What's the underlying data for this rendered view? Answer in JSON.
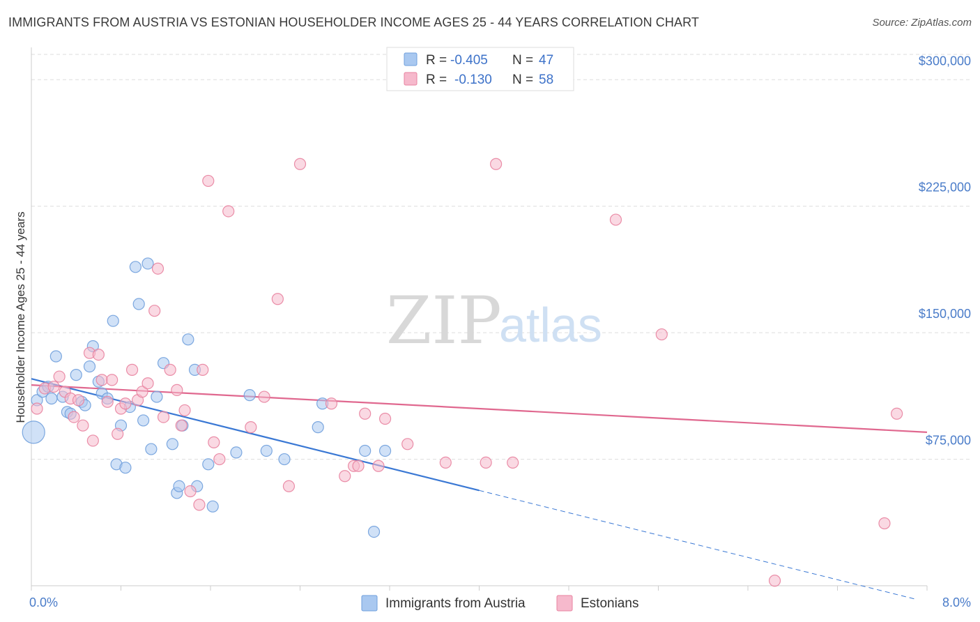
{
  "header": {
    "title": "IMMIGRANTS FROM AUSTRIA VS ESTONIAN HOUSEHOLDER INCOME AGES 25 - 44 YEARS CORRELATION CHART",
    "source": "Source: ZipAtlas.com"
  },
  "watermark": {
    "zip": "ZIP",
    "atlas": "atlas"
  },
  "legend": {
    "rows": [
      {
        "r_label": "R =",
        "r_value": "-0.405",
        "n_label": "N =",
        "n_value": "47",
        "color": "#a9c8f0",
        "stroke": "#6f9fdc"
      },
      {
        "r_label": "R =",
        "r_value": "-0.130",
        "n_label": "N =",
        "n_value": "58",
        "color": "#f6b9cc",
        "stroke": "#e8829f"
      }
    ]
  },
  "colors": {
    "blue_fill": "#a9c8f0",
    "blue_stroke": "#6f9fdc",
    "blue_line": "#3a78d4",
    "pink_fill": "#f6b9cc",
    "pink_stroke": "#e8829f",
    "pink_line": "#e0688f",
    "grid": "#dddddd",
    "axis_text": "#4a7cc9"
  },
  "chart_data": {
    "type": "scatter",
    "title": "IMMIGRANTS FROM AUSTRIA VS ESTONIAN HOUSEHOLDER INCOME AGES 25 - 44 YEARS CORRELATION CHART",
    "xlabel": "",
    "ylabel": "Householder Income Ages 25 - 44 years",
    "xlim": [
      0,
      8
    ],
    "ylim": [
      0,
      315000
    ],
    "x_tick_labels": [
      "0.0%",
      "8.0%"
    ],
    "y_ticks": [
      75000,
      150000,
      225000,
      300000
    ],
    "y_tick_labels": [
      "$75,000",
      "$150,000",
      "$225,000",
      "$300,000"
    ],
    "grid": true,
    "legend_position": "top-center",
    "series": [
      {
        "name": "Immigrants from Austria",
        "r": -0.405,
        "n": 47,
        "trend": {
          "x0": 0.0,
          "y0": 122700,
          "x1": 4.0,
          "y1": 56500,
          "dash_to_x": 7.9,
          "dash_to_y": -8000
        },
        "points": [
          [
            0.02,
            91000
          ],
          [
            0.05,
            110000
          ],
          [
            0.1,
            115000
          ],
          [
            0.15,
            118000
          ],
          [
            0.18,
            111000
          ],
          [
            0.22,
            136000
          ],
          [
            0.28,
            112000
          ],
          [
            0.32,
            103000
          ],
          [
            0.35,
            102000
          ],
          [
            0.4,
            125000
          ],
          [
            0.45,
            109000
          ],
          [
            0.48,
            107000
          ],
          [
            0.52,
            130000
          ],
          [
            0.55,
            142000
          ],
          [
            0.6,
            121000
          ],
          [
            0.63,
            114000
          ],
          [
            0.68,
            111000
          ],
          [
            0.73,
            157000
          ],
          [
            0.76,
            72000
          ],
          [
            0.8,
            95000
          ],
          [
            0.84,
            70000
          ],
          [
            0.88,
            106000
          ],
          [
            0.93,
            189000
          ],
          [
            0.96,
            167000
          ],
          [
            1.0,
            98000
          ],
          [
            1.04,
            191000
          ],
          [
            1.07,
            81000
          ],
          [
            1.12,
            112000
          ],
          [
            1.18,
            132000
          ],
          [
            1.26,
            84000
          ],
          [
            1.3,
            55000
          ],
          [
            1.32,
            59000
          ],
          [
            1.35,
            95000
          ],
          [
            1.4,
            146000
          ],
          [
            1.46,
            128000
          ],
          [
            1.48,
            59000
          ],
          [
            1.58,
            72000
          ],
          [
            1.62,
            47000
          ],
          [
            1.83,
            79000
          ],
          [
            1.95,
            113000
          ],
          [
            2.1,
            80000
          ],
          [
            2.26,
            75000
          ],
          [
            2.56,
            94000
          ],
          [
            2.6,
            108000
          ],
          [
            2.98,
            80000
          ],
          [
            3.06,
            32000
          ],
          [
            3.16,
            80000
          ]
        ]
      },
      {
        "name": "Estonians",
        "r": -0.13,
        "n": 58,
        "trend": {
          "x0": 0.0,
          "y0": 119000,
          "x1": 8.0,
          "y1": 91000
        },
        "points": [
          [
            0.05,
            105000
          ],
          [
            0.12,
            117000
          ],
          [
            0.2,
            118000
          ],
          [
            0.25,
            124000
          ],
          [
            0.3,
            115000
          ],
          [
            0.35,
            111000
          ],
          [
            0.38,
            100000
          ],
          [
            0.42,
            110000
          ],
          [
            0.46,
            95000
          ],
          [
            0.52,
            138000
          ],
          [
            0.55,
            86000
          ],
          [
            0.6,
            137000
          ],
          [
            0.63,
            122000
          ],
          [
            0.68,
            109000
          ],
          [
            0.72,
            122000
          ],
          [
            0.77,
            90000
          ],
          [
            0.8,
            105000
          ],
          [
            0.84,
            108000
          ],
          [
            0.9,
            128000
          ],
          [
            0.95,
            110000
          ],
          [
            0.99,
            115000
          ],
          [
            1.04,
            120000
          ],
          [
            1.1,
            163000
          ],
          [
            1.13,
            188000
          ],
          [
            1.18,
            100000
          ],
          [
            1.24,
            128000
          ],
          [
            1.3,
            116000
          ],
          [
            1.34,
            95000
          ],
          [
            1.37,
            104000
          ],
          [
            1.42,
            56000
          ],
          [
            1.5,
            48000
          ],
          [
            1.53,
            128000
          ],
          [
            1.58,
            240000
          ],
          [
            1.63,
            85000
          ],
          [
            1.68,
            75000
          ],
          [
            1.76,
            222000
          ],
          [
            1.96,
            94000
          ],
          [
            2.08,
            112000
          ],
          [
            2.2,
            170000
          ],
          [
            2.3,
            59000
          ],
          [
            2.4,
            250000
          ],
          [
            2.68,
            108000
          ],
          [
            2.8,
            65000
          ],
          [
            2.88,
            71000
          ],
          [
            2.92,
            71000
          ],
          [
            2.98,
            102000
          ],
          [
            3.1,
            71000
          ],
          [
            3.16,
            99000
          ],
          [
            3.36,
            84000
          ],
          [
            3.7,
            73000
          ],
          [
            4.06,
            73000
          ],
          [
            4.15,
            250000
          ],
          [
            4.3,
            73000
          ],
          [
            5.22,
            217000
          ],
          [
            5.63,
            149000
          ],
          [
            6.64,
            3000
          ],
          [
            7.62,
            37000
          ],
          [
            7.73,
            102000
          ]
        ]
      }
    ]
  }
}
